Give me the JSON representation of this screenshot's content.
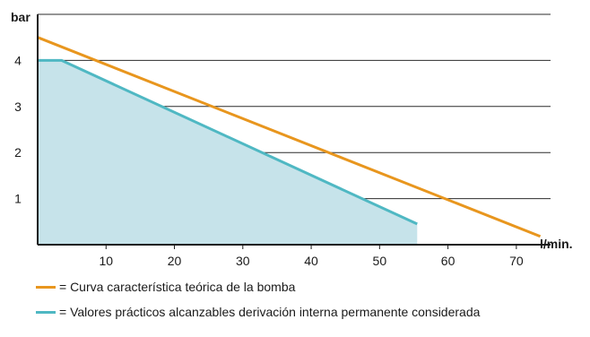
{
  "chart_data": {
    "type": "line",
    "xlabel": "l/min.",
    "ylabel": "bar",
    "xlim": [
      0,
      75
    ],
    "ylim": [
      0,
      5
    ],
    "x_ticks": [
      10,
      20,
      30,
      40,
      50,
      60,
      70
    ],
    "y_ticks": [
      1,
      2,
      3,
      4
    ],
    "grid": true,
    "series": [
      {
        "name": "= Curva característica teórica de la bomba",
        "color": "#e8961e",
        "fill": false,
        "points": [
          [
            0,
            4.5
          ],
          [
            73.5,
            0.18
          ]
        ]
      },
      {
        "name": "= Valores prácticos alcanzables derivación interna permanente considerada",
        "color": "#4fb8c3",
        "fill": true,
        "fill_color": "#c6e3ea",
        "points": [
          [
            0,
            4.0
          ],
          [
            3.5,
            4.0
          ],
          [
            55.5,
            0.45
          ]
        ]
      }
    ]
  }
}
